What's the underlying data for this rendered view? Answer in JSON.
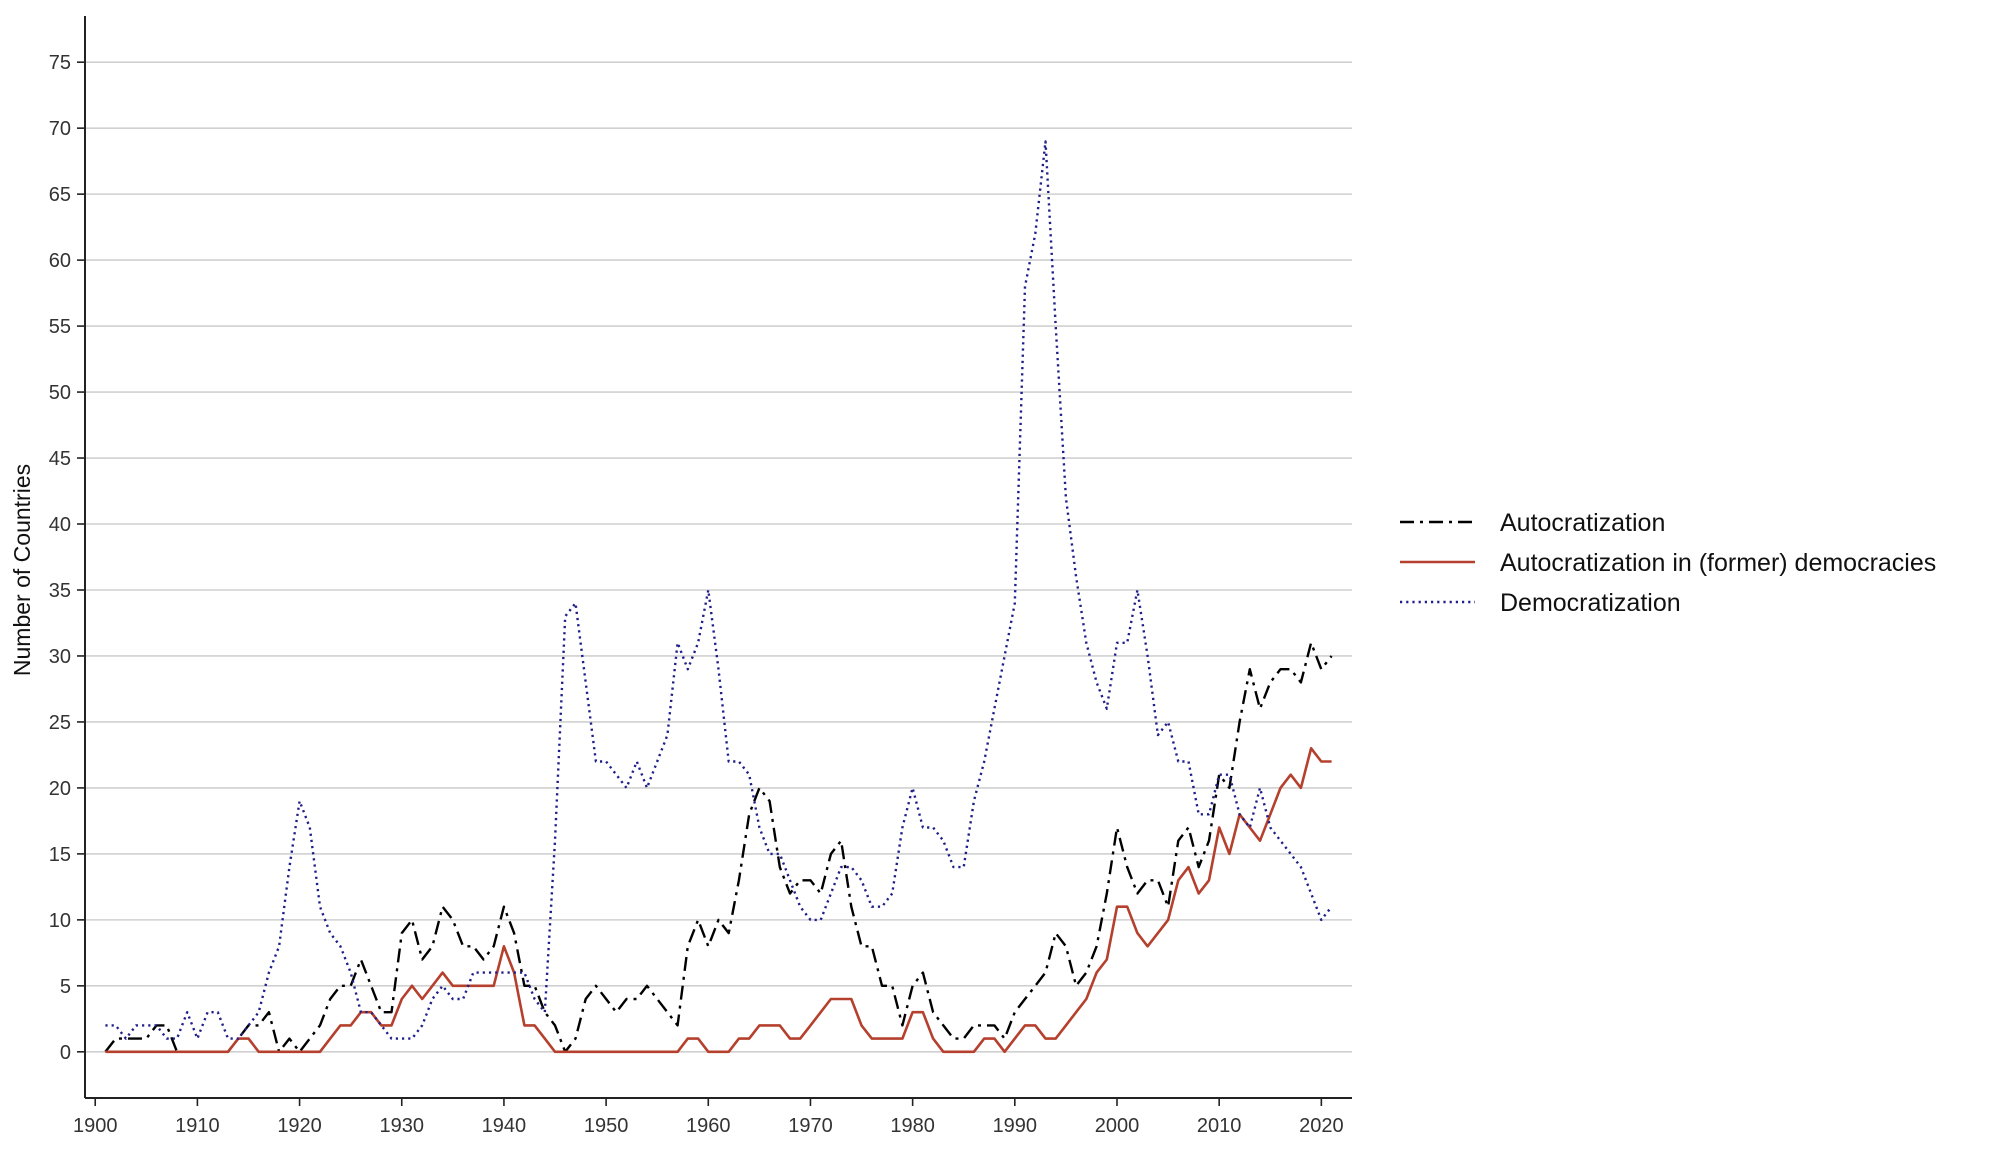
{
  "chart_data": {
    "type": "line",
    "title": "",
    "xlabel": "",
    "ylabel": "Number of Countries",
    "xlim": [
      1899,
      2023
    ],
    "ylim": [
      -3.5,
      78.5
    ],
    "xticks": [
      1900,
      1910,
      1920,
      1930,
      1940,
      1950,
      1960,
      1970,
      1980,
      1990,
      2000,
      2010,
      2020
    ],
    "yticks": [
      0,
      5,
      10,
      15,
      20,
      25,
      30,
      35,
      40,
      45,
      50,
      55,
      60,
      65,
      70,
      75
    ],
    "grid": "horizontal",
    "legend_position": "right",
    "x": [
      1901,
      1902,
      1903,
      1904,
      1905,
      1906,
      1907,
      1908,
      1909,
      1910,
      1911,
      1912,
      1913,
      1914,
      1915,
      1916,
      1917,
      1918,
      1919,
      1920,
      1921,
      1922,
      1923,
      1924,
      1925,
      1926,
      1927,
      1928,
      1929,
      1930,
      1931,
      1932,
      1933,
      1934,
      1935,
      1936,
      1937,
      1938,
      1939,
      1940,
      1941,
      1942,
      1943,
      1944,
      1945,
      1946,
      1947,
      1948,
      1949,
      1950,
      1951,
      1952,
      1953,
      1954,
      1955,
      1956,
      1957,
      1958,
      1959,
      1960,
      1961,
      1962,
      1963,
      1964,
      1965,
      1966,
      1967,
      1968,
      1969,
      1970,
      1971,
      1972,
      1973,
      1974,
      1975,
      1976,
      1977,
      1978,
      1979,
      1980,
      1981,
      1982,
      1983,
      1984,
      1985,
      1986,
      1987,
      1988,
      1989,
      1990,
      1991,
      1992,
      1993,
      1994,
      1995,
      1996,
      1997,
      1998,
      1999,
      2000,
      2001,
      2002,
      2003,
      2004,
      2005,
      2006,
      2007,
      2008,
      2009,
      2010,
      2011,
      2012,
      2013,
      2014,
      2015,
      2016,
      2017,
      2018,
      2019,
      2020,
      2021
    ],
    "series": [
      {
        "name": "Autocratization",
        "color": "#000000",
        "dash": "dash-dot",
        "values": [
          0,
          1,
          1,
          1,
          1,
          2,
          2,
          0,
          0,
          0,
          0,
          0,
          0,
          1,
          2,
          2,
          3,
          0,
          1,
          0,
          1,
          2,
          4,
          5,
          5,
          7,
          5,
          3,
          3,
          9,
          10,
          7,
          8,
          11,
          10,
          8,
          8,
          7,
          8,
          11,
          9,
          5,
          5,
          3,
          2,
          0,
          1,
          4,
          5,
          4,
          3,
          4,
          4,
          5,
          4,
          3,
          2,
          8,
          10,
          8,
          10,
          9,
          13,
          18,
          20,
          19,
          14,
          12,
          13,
          13,
          12,
          15,
          16,
          11,
          8,
          8,
          5,
          5,
          2,
          5,
          6,
          3,
          2,
          1,
          1,
          2,
          2,
          2,
          1,
          3,
          4,
          5,
          6,
          9,
          8,
          5,
          6,
          8,
          12,
          17,
          14,
          12,
          13,
          13,
          11,
          16,
          17,
          14,
          16,
          21,
          20,
          25,
          29,
          26,
          28,
          29,
          29,
          28,
          31,
          29,
          30
        ]
      },
      {
        "name": "Autocratization in (former) democracies",
        "color": "#b5402e",
        "dash": "solid",
        "values": [
          0,
          0,
          0,
          0,
          0,
          0,
          0,
          0,
          0,
          0,
          0,
          0,
          0,
          1,
          1,
          0,
          0,
          0,
          0,
          0,
          0,
          0,
          1,
          2,
          2,
          3,
          3,
          2,
          2,
          4,
          5,
          4,
          5,
          6,
          5,
          5,
          5,
          5,
          5,
          8,
          6,
          2,
          2,
          1,
          0,
          0,
          0,
          0,
          0,
          0,
          0,
          0,
          0,
          0,
          0,
          0,
          0,
          1,
          1,
          0,
          0,
          0,
          1,
          1,
          2,
          2,
          2,
          1,
          1,
          2,
          3,
          4,
          4,
          4,
          2,
          1,
          1,
          1,
          1,
          3,
          3,
          1,
          0,
          0,
          0,
          0,
          1,
          1,
          0,
          1,
          2,
          2,
          1,
          1,
          2,
          3,
          4,
          6,
          7,
          11,
          11,
          9,
          8,
          9,
          10,
          13,
          14,
          12,
          13,
          17,
          15,
          18,
          17,
          16,
          18,
          20,
          21,
          20,
          23,
          22,
          22
        ]
      },
      {
        "name": "Democratization",
        "color": "#1f1f8a",
        "dash": "dotted",
        "values": [
          2,
          2,
          1,
          2,
          2,
          2,
          1,
          1,
          3,
          1,
          3,
          3,
          1,
          1,
          2,
          3,
          6,
          8,
          14,
          19,
          17,
          11,
          9,
          8,
          6,
          3,
          3,
          2,
          1,
          1,
          1,
          2,
          4,
          5,
          4,
          4,
          6,
          6,
          6,
          6,
          6,
          6,
          4,
          3,
          16,
          33,
          34,
          28,
          22,
          22,
          21,
          20,
          22,
          20,
          22,
          24,
          31,
          29,
          31,
          35,
          29,
          22,
          22,
          21,
          17,
          15,
          15,
          13,
          11,
          10,
          10,
          12,
          14,
          14,
          13,
          11,
          11,
          12,
          17,
          20,
          17,
          17,
          16,
          14,
          14,
          19,
          22,
          26,
          30,
          34,
          58,
          62,
          69,
          55,
          42,
          36,
          31,
          28,
          26,
          31,
          31,
          35,
          30,
          24,
          25,
          22,
          22,
          18,
          18,
          21,
          21,
          18,
          17,
          20,
          17,
          16,
          15,
          14,
          12,
          10,
          11
        ]
      }
    ]
  }
}
